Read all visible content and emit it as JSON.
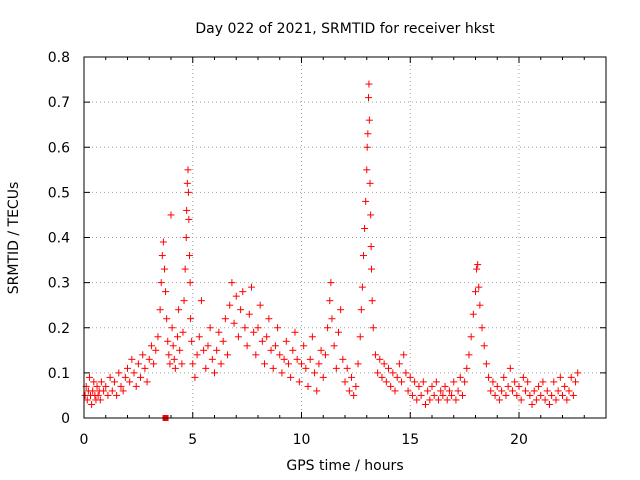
{
  "chart_data": {
    "type": "scatter",
    "title": "Day 022 of 2021, SRMTID for receiver hkst",
    "xlabel": "GPS time / hours",
    "ylabel": "SRMTID / TECUs",
    "xlim": [
      0,
      24
    ],
    "ylim": [
      0,
      0.8
    ],
    "x_ticks": [
      0,
      5,
      10,
      15,
      20
    ],
    "x_tick_labels": [
      "0",
      "5",
      "10",
      "15",
      "20"
    ],
    "y_ticks": [
      0,
      0.1,
      0.2,
      0.3,
      0.4,
      0.5,
      0.6,
      0.7,
      0.8
    ],
    "y_tick_labels": [
      "0",
      "0.1",
      "0.2",
      "0.3",
      "0.4",
      "0.5",
      "0.6",
      "0.7",
      "0.8"
    ],
    "grid": true,
    "marker_color": "#ff0000",
    "marker": "+",
    "series": [
      {
        "name": "SRMTID",
        "points": [
          [
            0.05,
            0.05
          ],
          [
            0.1,
            0.07
          ],
          [
            0.15,
            0.04
          ],
          [
            0.2,
            0.06
          ],
          [
            0.25,
            0.09
          ],
          [
            0.3,
            0.05
          ],
          [
            0.35,
            0.03
          ],
          [
            0.4,
            0.06
          ],
          [
            0.45,
            0.08
          ],
          [
            0.5,
            0.05
          ],
          [
            0.55,
            0.04
          ],
          [
            0.6,
            0.07
          ],
          [
            0.65,
            0.05
          ],
          [
            0.7,
            0.06
          ],
          [
            0.75,
            0.04
          ],
          [
            0.8,
            0.08
          ],
          [
            0.9,
            0.06
          ],
          [
            1.0,
            0.07
          ],
          [
            1.1,
            0.05
          ],
          [
            1.2,
            0.09
          ],
          [
            1.3,
            0.06
          ],
          [
            1.4,
            0.08
          ],
          [
            1.5,
            0.05
          ],
          [
            1.6,
            0.1
          ],
          [
            1.7,
            0.07
          ],
          [
            1.8,
            0.06
          ],
          [
            1.9,
            0.09
          ],
          [
            2.0,
            0.11
          ],
          [
            2.1,
            0.08
          ],
          [
            2.2,
            0.13
          ],
          [
            2.3,
            0.1
          ],
          [
            2.4,
            0.07
          ],
          [
            2.5,
            0.12
          ],
          [
            2.6,
            0.09
          ],
          [
            2.7,
            0.14
          ],
          [
            2.8,
            0.11
          ],
          [
            2.9,
            0.08
          ],
          [
            3.0,
            0.13
          ],
          [
            3.1,
            0.16
          ],
          [
            3.2,
            0.12
          ],
          [
            3.3,
            0.15
          ],
          [
            3.4,
            0.18
          ],
          [
            3.5,
            0.24
          ],
          [
            3.55,
            0.3
          ],
          [
            3.6,
            0.36
          ],
          [
            3.65,
            0.39
          ],
          [
            3.7,
            0.33
          ],
          [
            3.75,
            0.28
          ],
          [
            3.8,
            0.22
          ],
          [
            3.85,
            0.17
          ],
          [
            3.9,
            0.14
          ],
          [
            3.95,
            0.12
          ],
          [
            4.0,
            0.45
          ],
          [
            4.05,
            0.2
          ],
          [
            4.1,
            0.16
          ],
          [
            4.15,
            0.13
          ],
          [
            4.2,
            0.11
          ],
          [
            4.3,
            0.18
          ],
          [
            4.35,
            0.24
          ],
          [
            4.4,
            0.15
          ],
          [
            4.5,
            0.12
          ],
          [
            4.55,
            0.19
          ],
          [
            4.6,
            0.26
          ],
          [
            4.65,
            0.33
          ],
          [
            4.7,
            0.4
          ],
          [
            4.72,
            0.46
          ],
          [
            4.75,
            0.52
          ],
          [
            4.78,
            0.55
          ],
          [
            4.8,
            0.5
          ],
          [
            4.82,
            0.44
          ],
          [
            4.85,
            0.36
          ],
          [
            4.88,
            0.3
          ],
          [
            4.9,
            0.22
          ],
          [
            4.95,
            0.17
          ],
          [
            5.0,
            0.12
          ],
          [
            5.1,
            0.09
          ],
          [
            5.2,
            0.14
          ],
          [
            5.3,
            0.18
          ],
          [
            5.4,
            0.26
          ],
          [
            5.5,
            0.15
          ],
          [
            5.6,
            0.11
          ],
          [
            5.7,
            0.16
          ],
          [
            5.8,
            0.2
          ],
          [
            5.9,
            0.13
          ],
          [
            6.0,
            0.1
          ],
          [
            6.1,
            0.15
          ],
          [
            6.2,
            0.19
          ],
          [
            6.3,
            0.12
          ],
          [
            6.4,
            0.17
          ],
          [
            6.5,
            0.22
          ],
          [
            6.6,
            0.14
          ],
          [
            6.7,
            0.25
          ],
          [
            6.8,
            0.3
          ],
          [
            6.9,
            0.21
          ],
          [
            7.0,
            0.27
          ],
          [
            7.1,
            0.18
          ],
          [
            7.2,
            0.24
          ],
          [
            7.3,
            0.28
          ],
          [
            7.4,
            0.2
          ],
          [
            7.5,
            0.16
          ],
          [
            7.6,
            0.23
          ],
          [
            7.7,
            0.29
          ],
          [
            7.8,
            0.19
          ],
          [
            7.9,
            0.14
          ],
          [
            8.0,
            0.2
          ],
          [
            8.1,
            0.25
          ],
          [
            8.2,
            0.17
          ],
          [
            8.3,
            0.12
          ],
          [
            8.4,
            0.18
          ],
          [
            8.5,
            0.22
          ],
          [
            8.6,
            0.15
          ],
          [
            8.7,
            0.11
          ],
          [
            8.8,
            0.16
          ],
          [
            8.9,
            0.2
          ],
          [
            9.0,
            0.14
          ],
          [
            9.1,
            0.1
          ],
          [
            9.2,
            0.13
          ],
          [
            9.3,
            0.17
          ],
          [
            9.4,
            0.12
          ],
          [
            9.5,
            0.09
          ],
          [
            9.6,
            0.15
          ],
          [
            9.7,
            0.19
          ],
          [
            9.8,
            0.13
          ],
          [
            9.9,
            0.08
          ],
          [
            10.0,
            0.12
          ],
          [
            10.1,
            0.16
          ],
          [
            10.2,
            0.11
          ],
          [
            10.3,
            0.07
          ],
          [
            10.4,
            0.13
          ],
          [
            10.5,
            0.18
          ],
          [
            10.6,
            0.1
          ],
          [
            10.7,
            0.06
          ],
          [
            10.8,
            0.12
          ],
          [
            10.9,
            0.15
          ],
          [
            11.0,
            0.09
          ],
          [
            11.1,
            0.14
          ],
          [
            11.2,
            0.2
          ],
          [
            11.3,
            0.26
          ],
          [
            11.35,
            0.3
          ],
          [
            11.4,
            0.22
          ],
          [
            11.5,
            0.16
          ],
          [
            11.6,
            0.11
          ],
          [
            11.7,
            0.19
          ],
          [
            11.8,
            0.24
          ],
          [
            11.9,
            0.13
          ],
          [
            12.0,
            0.08
          ],
          [
            12.1,
            0.11
          ],
          [
            12.2,
            0.06
          ],
          [
            12.3,
            0.09
          ],
          [
            12.4,
            0.05
          ],
          [
            12.5,
            0.07
          ],
          [
            12.6,
            0.12
          ],
          [
            12.7,
            0.18
          ],
          [
            12.75,
            0.24
          ],
          [
            12.8,
            0.29
          ],
          [
            12.85,
            0.36
          ],
          [
            12.9,
            0.42
          ],
          [
            12.95,
            0.48
          ],
          [
            13.0,
            0.55
          ],
          [
            13.02,
            0.6
          ],
          [
            13.05,
            0.63
          ],
          [
            13.08,
            0.71
          ],
          [
            13.1,
            0.74
          ],
          [
            13.12,
            0.66
          ],
          [
            13.15,
            0.52
          ],
          [
            13.18,
            0.45
          ],
          [
            13.2,
            0.38
          ],
          [
            13.22,
            0.33
          ],
          [
            13.25,
            0.26
          ],
          [
            13.3,
            0.2
          ],
          [
            13.4,
            0.14
          ],
          [
            13.5,
            0.1
          ],
          [
            13.6,
            0.13
          ],
          [
            13.7,
            0.09
          ],
          [
            13.8,
            0.12
          ],
          [
            13.9,
            0.08
          ],
          [
            14.0,
            0.11
          ],
          [
            14.1,
            0.07
          ],
          [
            14.2,
            0.1
          ],
          [
            14.3,
            0.06
          ],
          [
            14.4,
            0.09
          ],
          [
            14.5,
            0.12
          ],
          [
            14.6,
            0.08
          ],
          [
            14.7,
            0.14
          ],
          [
            14.8,
            0.1
          ],
          [
            14.9,
            0.06
          ],
          [
            15.0,
            0.09
          ],
          [
            15.1,
            0.05
          ],
          [
            15.2,
            0.08
          ],
          [
            15.3,
            0.04
          ],
          [
            15.4,
            0.07
          ],
          [
            15.5,
            0.05
          ],
          [
            15.6,
            0.08
          ],
          [
            15.7,
            0.03
          ],
          [
            15.8,
            0.06
          ],
          [
            15.9,
            0.04
          ],
          [
            16.0,
            0.07
          ],
          [
            16.1,
            0.05
          ],
          [
            16.2,
            0.08
          ],
          [
            16.3,
            0.04
          ],
          [
            16.4,
            0.06
          ],
          [
            16.5,
            0.05
          ],
          [
            16.6,
            0.07
          ],
          [
            16.7,
            0.04
          ],
          [
            16.8,
            0.06
          ],
          [
            16.9,
            0.05
          ],
          [
            17.0,
            0.08
          ],
          [
            17.1,
            0.04
          ],
          [
            17.2,
            0.06
          ],
          [
            17.3,
            0.09
          ],
          [
            17.4,
            0.05
          ],
          [
            17.5,
            0.08
          ],
          [
            17.6,
            0.11
          ],
          [
            17.7,
            0.14
          ],
          [
            17.8,
            0.18
          ],
          [
            17.9,
            0.23
          ],
          [
            18.0,
            0.28
          ],
          [
            18.05,
            0.33
          ],
          [
            18.1,
            0.34
          ],
          [
            18.15,
            0.29
          ],
          [
            18.2,
            0.25
          ],
          [
            18.3,
            0.2
          ],
          [
            18.4,
            0.16
          ],
          [
            18.5,
            0.12
          ],
          [
            18.6,
            0.09
          ],
          [
            18.7,
            0.06
          ],
          [
            18.8,
            0.08
          ],
          [
            18.9,
            0.05
          ],
          [
            19.0,
            0.07
          ],
          [
            19.1,
            0.04
          ],
          [
            19.2,
            0.06
          ],
          [
            19.3,
            0.09
          ],
          [
            19.4,
            0.05
          ],
          [
            19.5,
            0.07
          ],
          [
            19.6,
            0.11
          ],
          [
            19.7,
            0.06
          ],
          [
            19.8,
            0.08
          ],
          [
            19.9,
            0.05
          ],
          [
            20.0,
            0.07
          ],
          [
            20.1,
            0.04
          ],
          [
            20.2,
            0.09
          ],
          [
            20.3,
            0.06
          ],
          [
            20.4,
            0.08
          ],
          [
            20.5,
            0.05
          ],
          [
            20.6,
            0.03
          ],
          [
            20.7,
            0.06
          ],
          [
            20.8,
            0.04
          ],
          [
            20.9,
            0.07
          ],
          [
            21.0,
            0.05
          ],
          [
            21.1,
            0.08
          ],
          [
            21.2,
            0.04
          ],
          [
            21.3,
            0.06
          ],
          [
            21.4,
            0.03
          ],
          [
            21.5,
            0.05
          ],
          [
            21.6,
            0.08
          ],
          [
            21.7,
            0.04
          ],
          [
            21.8,
            0.06
          ],
          [
            21.9,
            0.09
          ],
          [
            22.0,
            0.05
          ],
          [
            22.1,
            0.07
          ],
          [
            22.2,
            0.04
          ],
          [
            22.3,
            0.06
          ],
          [
            22.4,
            0.09
          ],
          [
            22.5,
            0.05
          ],
          [
            22.6,
            0.08
          ],
          [
            22.7,
            0.1
          ]
        ]
      }
    ],
    "special_points": [
      {
        "name": "square-marker",
        "x": 3.75,
        "y": 0.0,
        "marker": "square"
      }
    ]
  }
}
